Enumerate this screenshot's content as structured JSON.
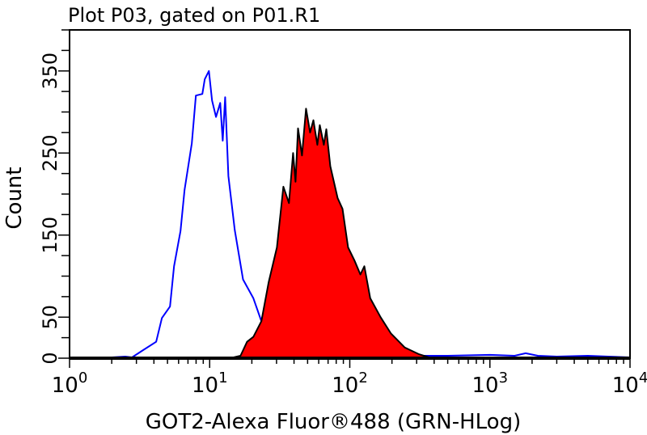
{
  "chart_data": {
    "type": "area",
    "title": "Plot P03, gated on P01.R1",
    "xlabel": "GOT2-Alexa Fluor®488 (GRN-HLog)",
    "ylabel": "Count",
    "xscale": "log",
    "xlim": [
      1,
      10000
    ],
    "ylim": [
      0,
      400
    ],
    "grid": false,
    "x_ticks": [
      {
        "base": "10",
        "exp": "0",
        "value": 1
      },
      {
        "base": "10",
        "exp": "1",
        "value": 10
      },
      {
        "base": "10",
        "exp": "2",
        "value": 100
      },
      {
        "base": "10",
        "exp": "3",
        "value": 1000
      },
      {
        "base": "10",
        "exp": "4",
        "value": 10000
      }
    ],
    "y_tick_labels": [
      0,
      50,
      150,
      250,
      350
    ],
    "y_minor_step": 25,
    "colors": {
      "control_line": "#0000ff",
      "sample_fill": "#ff0000",
      "sample_outline": "#000000"
    },
    "series": [
      {
        "style": "line",
        "color": "#0000ff",
        "points": [
          [
            1,
            0
          ],
          [
            1.5,
            1
          ],
          [
            2,
            1
          ],
          [
            2.5,
            2
          ],
          [
            2.79,
            1
          ],
          [
            3.36,
            10
          ],
          [
            4.15,
            20
          ],
          [
            4.56,
            49
          ],
          [
            5.21,
            63
          ],
          [
            5.57,
            112
          ],
          [
            6.19,
            155
          ],
          [
            6.62,
            205
          ],
          [
            7.46,
            262
          ],
          [
            7.97,
            320
          ],
          [
            8.87,
            322
          ],
          [
            9.23,
            340
          ],
          [
            9.87,
            350
          ],
          [
            10.4,
            314
          ],
          [
            11.1,
            294
          ],
          [
            11.9,
            311
          ],
          [
            12.4,
            265
          ],
          [
            12.9,
            318
          ],
          [
            13.6,
            222
          ],
          [
            15.1,
            156
          ],
          [
            17.3,
            96
          ],
          [
            20.5,
            73
          ],
          [
            23.4,
            45
          ],
          [
            25.7,
            32
          ],
          [
            31.4,
            13
          ],
          [
            43.9,
            4
          ],
          [
            85,
            2
          ],
          [
            150,
            2
          ],
          [
            300,
            3
          ],
          [
            500,
            3
          ],
          [
            1000,
            4
          ],
          [
            1500,
            3
          ],
          [
            1800,
            6
          ],
          [
            2200,
            3
          ],
          [
            3000,
            2
          ],
          [
            5000,
            3
          ],
          [
            7000,
            2
          ],
          [
            10000,
            1
          ]
        ]
      },
      {
        "style": "filled",
        "color": "#ff0000",
        "points": [
          [
            1,
            0
          ],
          [
            14,
            0
          ],
          [
            16.6,
            3
          ],
          [
            18.5,
            20
          ],
          [
            20.5,
            26
          ],
          [
            23.4,
            45
          ],
          [
            26.4,
            93
          ],
          [
            30.2,
            135
          ],
          [
            33.6,
            209
          ],
          [
            36.8,
            189
          ],
          [
            39.4,
            250
          ],
          [
            41.0,
            215
          ],
          [
            42.7,
            280
          ],
          [
            45.6,
            247
          ],
          [
            48.7,
            304
          ],
          [
            52.1,
            275
          ],
          [
            55.0,
            290
          ],
          [
            58.7,
            260
          ],
          [
            61.1,
            284
          ],
          [
            65.3,
            260
          ],
          [
            68.0,
            279
          ],
          [
            72.6,
            234
          ],
          [
            81.9,
            195
          ],
          [
            88.7,
            182
          ],
          [
            97.3,
            135
          ],
          [
            108,
            119
          ],
          [
            119,
            102
          ],
          [
            127,
            112
          ],
          [
            140,
            73
          ],
          [
            166,
            50
          ],
          [
            197,
            30
          ],
          [
            247,
            13
          ],
          [
            310,
            5
          ],
          [
            368,
            1
          ],
          [
            450,
            0
          ],
          [
            10000,
            0
          ]
        ]
      }
    ]
  }
}
